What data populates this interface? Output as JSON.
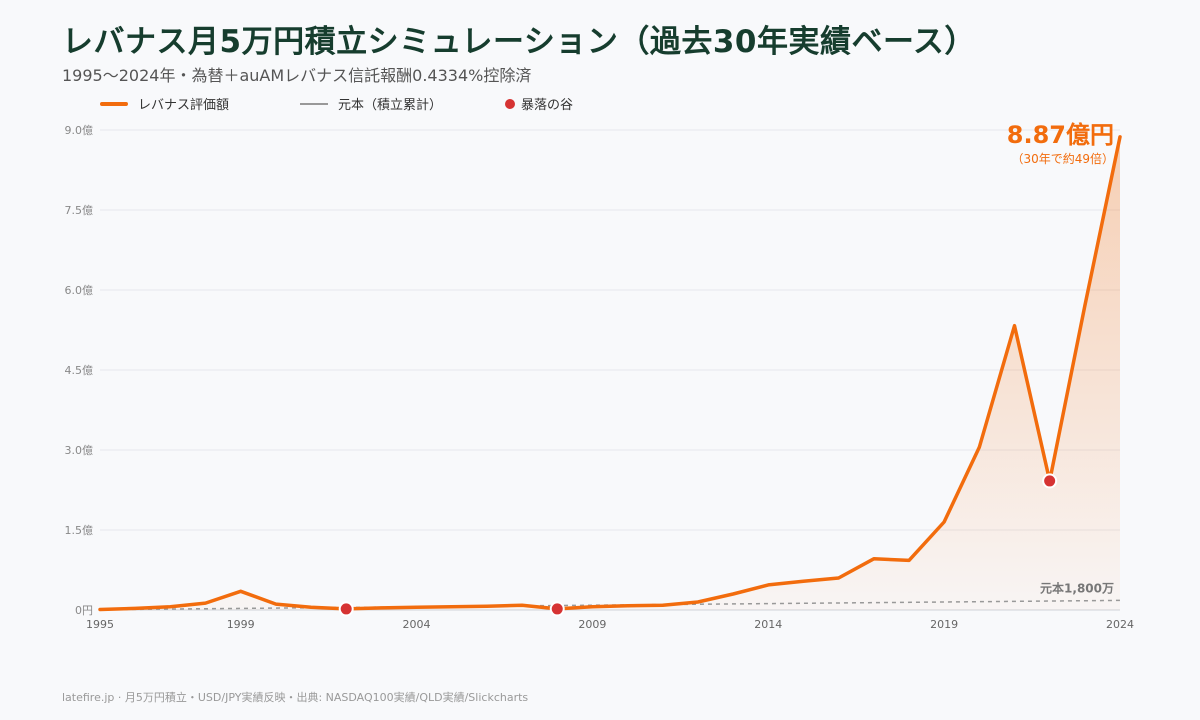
{
  "title": "レバナス月5万円積立シミュレーション（過去30年実績ベース）",
  "subtitle": "1995〜2024年・為替＋auAMレバナス信託報酬0.4334%控除済",
  "footer": "latefire.jp · 月5万円積立・USD/JPY実績反映・出典: NASDAQ100実績/QLD実績/Slickcharts",
  "colors": {
    "series": "#f26c0d",
    "principal": "#999999",
    "crash": "#d63333",
    "grid": "#e6e8ec",
    "title": "#163d2e"
  },
  "chart_data": {
    "type": "line",
    "legend": [
      {
        "label": "レバナス評価額",
        "kind": "line"
      },
      {
        "label": "元本（積立累計）",
        "kind": "thin-line"
      },
      {
        "label": "暴落の谷",
        "kind": "dot"
      }
    ],
    "ylim": [
      0,
      9
    ],
    "xlim": [
      1995,
      2024
    ],
    "y_ticks": [
      {
        "value": 0,
        "label": "0円"
      },
      {
        "value": 1.5,
        "label": "1.5億"
      },
      {
        "value": 3.0,
        "label": "3.0億"
      },
      {
        "value": 4.5,
        "label": "4.5億"
      },
      {
        "value": 6.0,
        "label": "6.0億"
      },
      {
        "value": 7.5,
        "label": "7.5億"
      },
      {
        "value": 9.0,
        "label": "9.0億"
      }
    ],
    "x_ticks": [
      1995,
      1999,
      2004,
      2009,
      2014,
      2019,
      2024
    ],
    "series": [
      {
        "name": "レバナス評価額",
        "x": [
          1995,
          1996,
          1997,
          1998,
          1999,
          2000,
          2001,
          2002,
          2003,
          2004,
          2005,
          2006,
          2007,
          2008,
          2009,
          2010,
          2011,
          2012,
          2013,
          2014,
          2015,
          2016,
          2017,
          2018,
          2019,
          2020,
          2021,
          2022,
          2023,
          2024
        ],
        "y": [
          0.01,
          0.03,
          0.06,
          0.13,
          0.35,
          0.11,
          0.05,
          0.02,
          0.04,
          0.05,
          0.06,
          0.07,
          0.09,
          0.02,
          0.06,
          0.08,
          0.09,
          0.15,
          0.3,
          0.47,
          0.54,
          0.6,
          0.96,
          0.93,
          1.65,
          3.05,
          5.33,
          2.42,
          5.7,
          8.87
        ]
      },
      {
        "name": "元本（積立累計）",
        "x": [
          1995,
          2024
        ],
        "y": [
          0.006,
          0.18
        ]
      }
    ],
    "crash_points": [
      {
        "x": 2002,
        "y": 0.02
      },
      {
        "x": 2008,
        "y": 0.02
      },
      {
        "x": 2022,
        "y": 2.42
      }
    ],
    "annotations": {
      "final_value": "8.87億円",
      "final_note": "（30年で約49倍）",
      "principal_label": "元本1,800万"
    }
  }
}
